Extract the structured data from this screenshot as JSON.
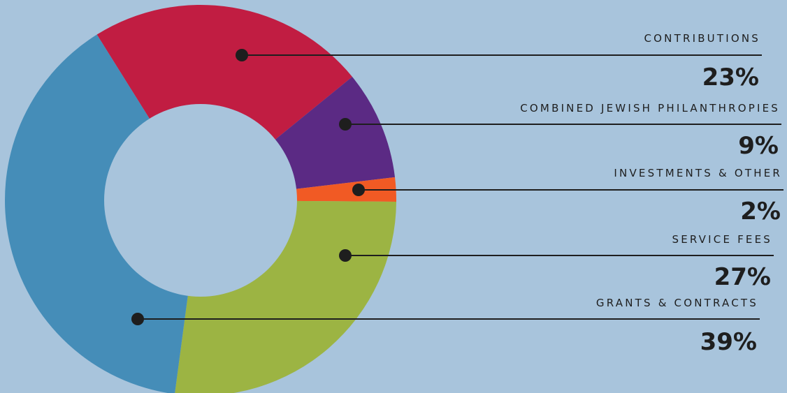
{
  "chart_data": {
    "type": "pie",
    "donut": true,
    "background": "#a8c4dc",
    "center_fill": "#a8c4dc",
    "slices": [
      {
        "label": "CONTRIBUTIONS",
        "value_label": "23%",
        "value": 23,
        "color": "#c11d42"
      },
      {
        "label": "COMBINED JEWISH PHILANTHROPIES",
        "value_label": "9%",
        "value": 9,
        "color": "#5b2a84"
      },
      {
        "label": "INVESTMENTS & OTHER",
        "value_label": "2%",
        "value": 2,
        "color": "#f15a24"
      },
      {
        "label": "SERVICE FEES",
        "value_label": "27%",
        "value": 27,
        "color": "#9cb443"
      },
      {
        "label": "GRANTS & CONTRACTS",
        "value_label": "39%",
        "value": 39,
        "color": "#458db8"
      }
    ]
  }
}
